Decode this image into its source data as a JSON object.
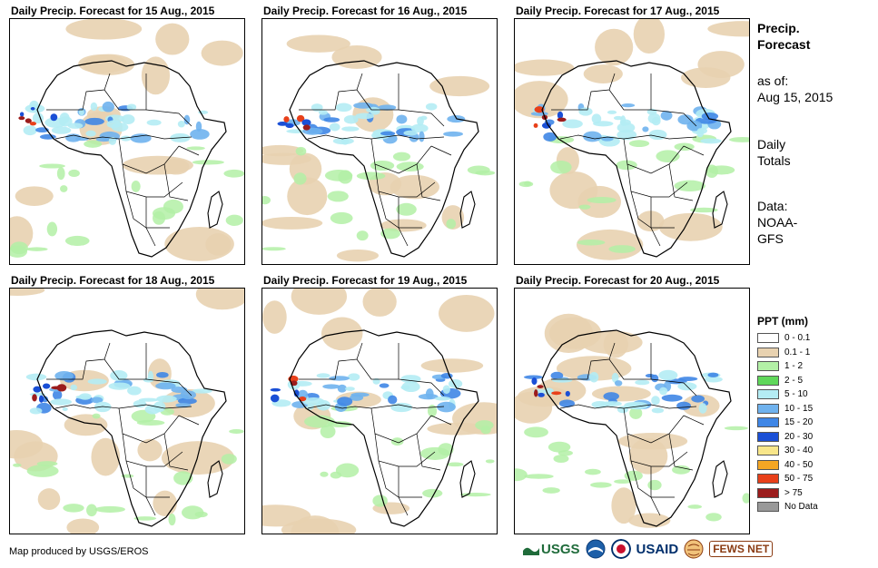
{
  "panels": [
    {
      "title": "Daily Precip. Forecast for 15 Aug., 2015",
      "variant": 0
    },
    {
      "title": "Daily Precip. Forecast for 16 Aug., 2015",
      "variant": 1
    },
    {
      "title": "Daily Precip. Forecast for 17 Aug., 2015",
      "variant": 2
    },
    {
      "title": "Daily Precip. Forecast for 18 Aug., 2015",
      "variant": 3
    },
    {
      "title": "Daily Precip. Forecast for 19 Aug., 2015",
      "variant": 4
    },
    {
      "title": "Daily Precip. Forecast for 20 Aug., 2015",
      "variant": 5
    }
  ],
  "sidebar": {
    "heading_line1": "Precip.",
    "heading_line2": "Forecast",
    "asof_label": "as of:",
    "asof_date": "Aug 15, 2015",
    "totals_line1": "Daily",
    "totals_line2": "Totals",
    "data_label": "Data:",
    "data_line1": "NOAA-",
    "data_line2": "GFS"
  },
  "legend": {
    "title": "PPT (mm)",
    "items": [
      {
        "label": "0 - 0.1",
        "color": "#ffffff"
      },
      {
        "label": "0.1 - 1",
        "color": "#e8d2b0"
      },
      {
        "label": "1 - 2",
        "color": "#b3f0a6"
      },
      {
        "label": "2 - 5",
        "color": "#5fd75a"
      },
      {
        "label": "5 - 10",
        "color": "#b4ecf4"
      },
      {
        "label": "10 - 15",
        "color": "#6fb2ee"
      },
      {
        "label": "15 - 20",
        "color": "#3f86e6"
      },
      {
        "label": "20 - 30",
        "color": "#1a4fd6"
      },
      {
        "label": "30 - 40",
        "color": "#f8e68a"
      },
      {
        "label": "40 - 50",
        "color": "#f5a623"
      },
      {
        "label": "50 - 75",
        "color": "#e8401a"
      },
      {
        "label": "> 75",
        "color": "#9b1c1c"
      },
      {
        "label": "No Data",
        "color": "#999999"
      }
    ]
  },
  "footer": {
    "credit": "Map produced by USGS/EROS",
    "logos": {
      "usgs": "USGS",
      "usaid": "USAID",
      "fews": "FEWS NET"
    }
  }
}
